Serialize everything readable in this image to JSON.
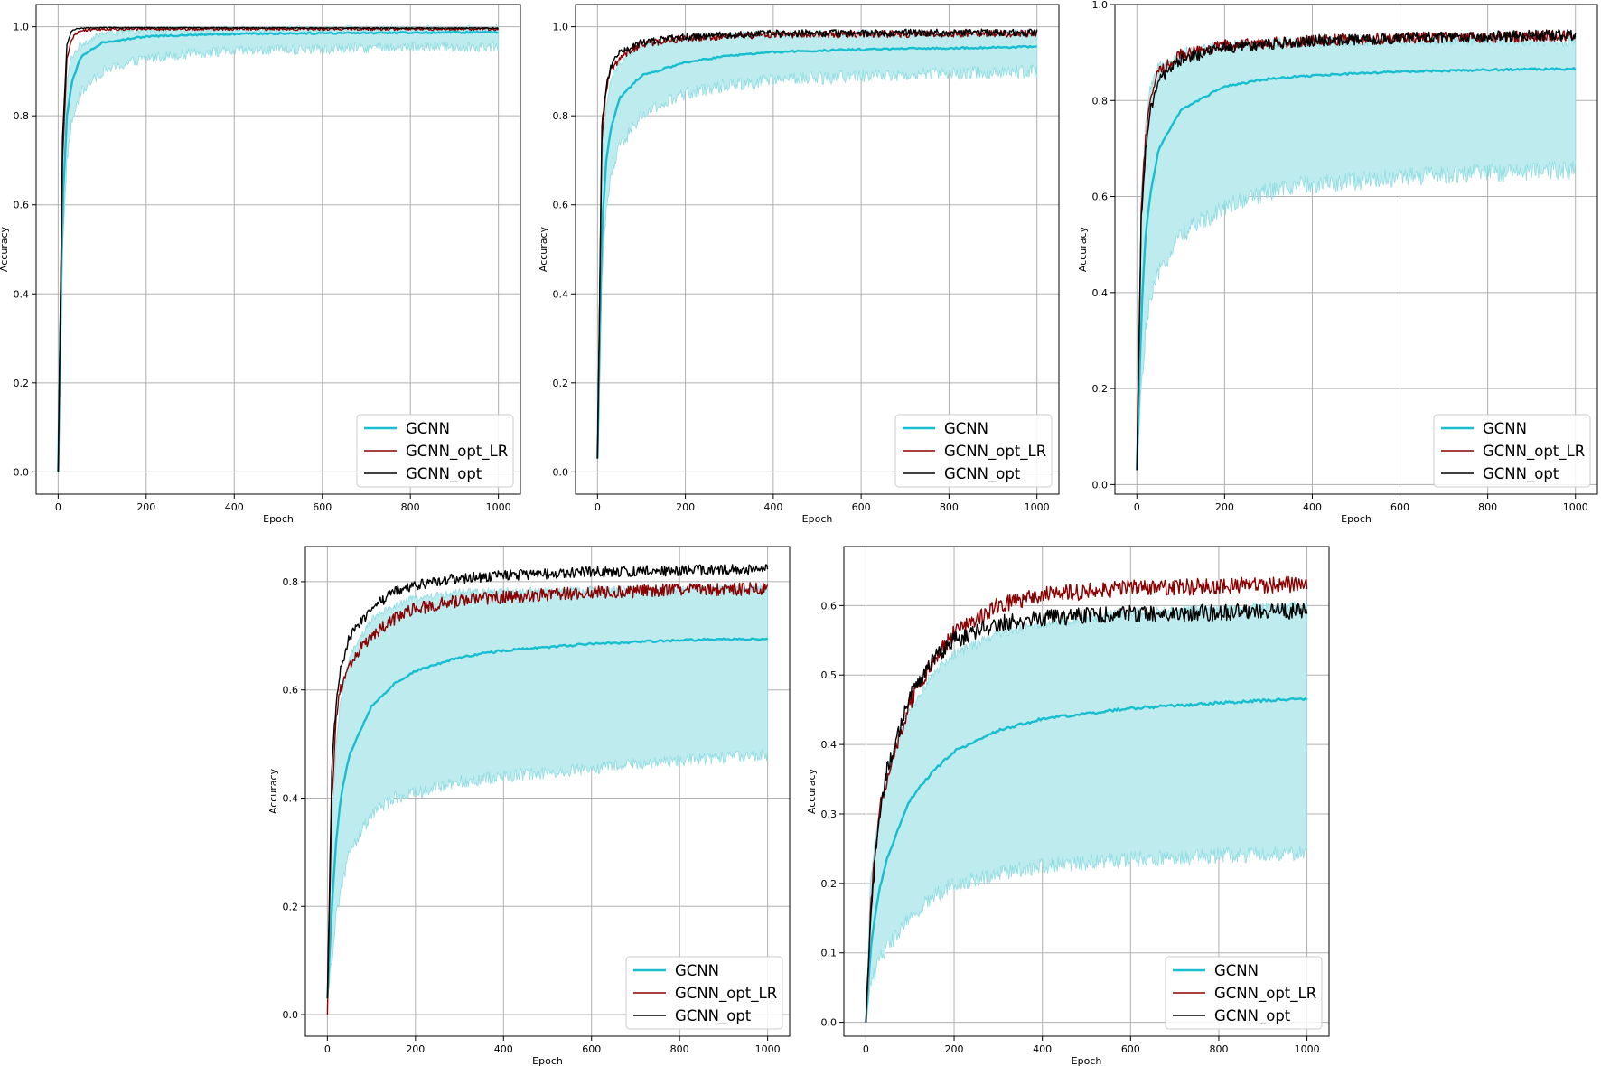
{
  "colors": {
    "gcnn": "#17becf",
    "gcnn_band": "#bdebee",
    "gcnn_band_edge": "#8fdde3",
    "gcnn_opt_lr": "#8b0000",
    "gcnn_opt": "#000000",
    "grid": "#b0b0b0"
  },
  "chart_data": [
    {
      "type": "line",
      "xlabel": "Epoch",
      "ylabel": "Accuracy",
      "xlim": [
        -50,
        1050
      ],
      "ylim": [
        -0.05,
        1.05
      ],
      "xticks": [
        0,
        200,
        400,
        600,
        800,
        1000
      ],
      "yticks": [
        0.0,
        0.2,
        0.4,
        0.6,
        0.8,
        1.0
      ],
      "xtick_labels": [
        "0",
        "200",
        "400",
        "600",
        "800",
        "1000"
      ],
      "ytick_labels": [
        "0.0",
        "0.2",
        "0.4",
        "0.6",
        "0.8",
        "1.0"
      ],
      "grid": true,
      "legend_position": "lower-right",
      "series": [
        {
          "name": "GCNN",
          "style": "mean-with-band",
          "x": [
            0,
            10,
            20,
            30,
            50,
            100,
            200,
            300,
            400,
            600,
            800,
            1000
          ],
          "values": [
            0.0,
            0.6,
            0.8,
            0.87,
            0.93,
            0.965,
            0.978,
            0.982,
            0.984,
            0.986,
            0.987,
            0.988
          ],
          "band_lower": [
            0.0,
            0.5,
            0.7,
            0.78,
            0.85,
            0.9,
            0.93,
            0.94,
            0.945,
            0.95,
            0.955,
            0.955
          ],
          "band_upper": [
            0.0,
            0.7,
            0.88,
            0.93,
            0.96,
            0.985,
            0.993,
            0.995,
            0.995,
            0.996,
            0.996,
            0.996
          ],
          "noise": 0.002,
          "band_noise": 0.012
        },
        {
          "name": "GCNN_opt_LR",
          "x": [
            0,
            10,
            20,
            30,
            40,
            60,
            100,
            1000
          ],
          "values": [
            0.0,
            0.7,
            0.93,
            0.97,
            0.985,
            0.993,
            0.995,
            0.995
          ],
          "noise": 0.003
        },
        {
          "name": "GCNN_opt",
          "x": [
            0,
            10,
            20,
            30,
            40,
            60,
            100,
            1000
          ],
          "values": [
            0.0,
            0.75,
            0.96,
            0.99,
            0.995,
            0.997,
            0.998,
            0.997
          ],
          "noise": 0.001
        }
      ]
    },
    {
      "type": "line",
      "xlabel": "Epoch",
      "ylabel": "Accuracy",
      "xlim": [
        -50,
        1050
      ],
      "ylim": [
        -0.05,
        1.05
      ],
      "xticks": [
        0,
        200,
        400,
        600,
        800,
        1000
      ],
      "yticks": [
        0.0,
        0.2,
        0.4,
        0.6,
        0.8,
        1.0
      ],
      "xtick_labels": [
        "0",
        "200",
        "400",
        "600",
        "800",
        "1000"
      ],
      "ytick_labels": [
        "0.0",
        "0.2",
        "0.4",
        "0.6",
        "0.8",
        "1.0"
      ],
      "grid": true,
      "legend_position": "lower-right",
      "series": [
        {
          "name": "GCNN",
          "style": "mean-with-band",
          "x": [
            0,
            10,
            20,
            30,
            50,
            100,
            200,
            300,
            400,
            600,
            800,
            1000
          ],
          "values": [
            0.03,
            0.55,
            0.7,
            0.77,
            0.84,
            0.89,
            0.92,
            0.935,
            0.943,
            0.949,
            0.952,
            0.955
          ],
          "band_lower": [
            0.03,
            0.45,
            0.58,
            0.66,
            0.73,
            0.8,
            0.85,
            0.87,
            0.88,
            0.89,
            0.895,
            0.9
          ],
          "band_upper": [
            0.03,
            0.7,
            0.82,
            0.88,
            0.92,
            0.96,
            0.975,
            0.98,
            0.983,
            0.985,
            0.985,
            0.985
          ],
          "noise": 0.002,
          "band_noise": 0.015
        },
        {
          "name": "GCNN_opt_LR",
          "x": [
            0,
            10,
            20,
            30,
            50,
            100,
            200,
            400,
            1000
          ],
          "values": [
            0.03,
            0.75,
            0.86,
            0.9,
            0.93,
            0.96,
            0.975,
            0.983,
            0.985
          ],
          "noise": 0.008
        },
        {
          "name": "GCNN_opt",
          "x": [
            0,
            10,
            20,
            30,
            50,
            100,
            200,
            400,
            1000
          ],
          "values": [
            0.03,
            0.78,
            0.87,
            0.91,
            0.94,
            0.965,
            0.978,
            0.985,
            0.988
          ],
          "noise": 0.008
        }
      ]
    },
    {
      "type": "line",
      "xlabel": "Epoch",
      "ylabel": "Accuracy",
      "xlim": [
        -50,
        1050
      ],
      "ylim": [
        -0.02,
        1.0
      ],
      "xticks": [
        0,
        200,
        400,
        600,
        800,
        1000
      ],
      "yticks": [
        0.0,
        0.2,
        0.4,
        0.6,
        0.8,
        1.0
      ],
      "xtick_labels": [
        "0",
        "200",
        "400",
        "600",
        "800",
        "1000"
      ],
      "ytick_labels": [
        "0.0",
        "0.2",
        "0.4",
        "0.6",
        "0.8",
        "1.0"
      ],
      "grid": true,
      "legend_position": "lower-right",
      "series": [
        {
          "name": "GCNN",
          "style": "mean-with-band",
          "x": [
            0,
            10,
            20,
            30,
            50,
            100,
            200,
            300,
            400,
            600,
            800,
            1000
          ],
          "values": [
            0.03,
            0.35,
            0.52,
            0.6,
            0.7,
            0.78,
            0.83,
            0.845,
            0.852,
            0.86,
            0.864,
            0.866
          ],
          "band_lower": [
            0.03,
            0.2,
            0.32,
            0.38,
            0.44,
            0.52,
            0.58,
            0.61,
            0.625,
            0.64,
            0.65,
            0.655
          ],
          "band_upper": [
            0.03,
            0.6,
            0.75,
            0.82,
            0.87,
            0.9,
            0.915,
            0.92,
            0.922,
            0.925,
            0.925,
            0.925
          ],
          "noise": 0.002,
          "band_noise": 0.02
        },
        {
          "name": "GCNN_opt_LR",
          "x": [
            0,
            10,
            20,
            30,
            50,
            100,
            200,
            400,
            600,
            1000
          ],
          "values": [
            0.03,
            0.58,
            0.72,
            0.8,
            0.86,
            0.895,
            0.915,
            0.925,
            0.93,
            0.935
          ],
          "noise": 0.012
        },
        {
          "name": "GCNN_opt",
          "x": [
            0,
            10,
            20,
            30,
            50,
            100,
            200,
            400,
            600,
            1000
          ],
          "values": [
            0.03,
            0.55,
            0.7,
            0.78,
            0.84,
            0.885,
            0.91,
            0.925,
            0.93,
            0.937
          ],
          "noise": 0.012
        }
      ]
    },
    {
      "type": "line",
      "xlabel": "Epoch",
      "ylabel": "Accuracy",
      "xlim": [
        -50,
        1050
      ],
      "ylim": [
        -0.04,
        0.865
      ],
      "xticks": [
        0,
        200,
        400,
        600,
        800,
        1000
      ],
      "yticks": [
        0.0,
        0.2,
        0.4,
        0.6,
        0.8
      ],
      "xtick_labels": [
        "0",
        "200",
        "400",
        "600",
        "800",
        "1000"
      ],
      "ytick_labels": [
        "0.0",
        "0.2",
        "0.4",
        "0.6",
        "0.8"
      ],
      "grid": true,
      "legend_position": "lower-right",
      "series": [
        {
          "name": "GCNN",
          "style": "mean-with-band",
          "x": [
            0,
            10,
            20,
            30,
            50,
            100,
            150,
            200,
            300,
            400,
            600,
            800,
            1000
          ],
          "values": [
            0.03,
            0.2,
            0.32,
            0.4,
            0.48,
            0.57,
            0.61,
            0.635,
            0.66,
            0.673,
            0.685,
            0.692,
            0.695
          ],
          "band_lower": [
            0.03,
            0.1,
            0.18,
            0.23,
            0.3,
            0.37,
            0.4,
            0.41,
            0.43,
            0.44,
            0.455,
            0.47,
            0.48
          ],
          "band_upper": [
            0.03,
            0.35,
            0.5,
            0.58,
            0.66,
            0.73,
            0.755,
            0.77,
            0.78,
            0.782,
            0.785,
            0.787,
            0.787
          ],
          "noise": 0.002,
          "band_noise": 0.012
        },
        {
          "name": "GCNN_opt_LR",
          "x": [
            0,
            10,
            20,
            30,
            50,
            100,
            150,
            200,
            300,
            400,
            600,
            800,
            1000
          ],
          "values": [
            0.0,
            0.4,
            0.55,
            0.6,
            0.65,
            0.7,
            0.73,
            0.75,
            0.765,
            0.772,
            0.78,
            0.785,
            0.787
          ],
          "noise": 0.012
        },
        {
          "name": "GCNN_opt",
          "x": [
            0,
            10,
            20,
            30,
            50,
            100,
            150,
            200,
            300,
            400,
            600,
            800,
            1000
          ],
          "values": [
            0.03,
            0.45,
            0.58,
            0.64,
            0.7,
            0.75,
            0.78,
            0.795,
            0.806,
            0.812,
            0.818,
            0.821,
            0.823
          ],
          "noise": 0.01
        }
      ]
    },
    {
      "type": "line",
      "xlabel": "Epoch",
      "ylabel": "Accuracy",
      "xlim": [
        -50,
        1050
      ],
      "ylim": [
        -0.02,
        0.685
      ],
      "xticks": [
        0,
        200,
        400,
        600,
        800,
        1000
      ],
      "yticks": [
        0.0,
        0.1,
        0.2,
        0.3,
        0.4,
        0.5,
        0.6
      ],
      "xtick_labels": [
        "0",
        "200",
        "400",
        "600",
        "800",
        "1000"
      ],
      "ytick_labels": [
        "0.0",
        "0.1",
        "0.2",
        "0.3",
        "0.4",
        "0.5",
        "0.6"
      ],
      "grid": true,
      "legend_position": "lower-right",
      "series": [
        {
          "name": "GCNN",
          "style": "mean-with-band",
          "x": [
            0,
            10,
            20,
            30,
            50,
            100,
            150,
            200,
            300,
            400,
            600,
            800,
            1000
          ],
          "values": [
            0.0,
            0.1,
            0.15,
            0.19,
            0.24,
            0.32,
            0.36,
            0.39,
            0.42,
            0.437,
            0.452,
            0.46,
            0.466
          ],
          "band_lower": [
            0.0,
            0.05,
            0.07,
            0.09,
            0.11,
            0.15,
            0.18,
            0.2,
            0.215,
            0.225,
            0.235,
            0.24,
            0.245
          ],
          "band_upper": [
            0.0,
            0.2,
            0.26,
            0.3,
            0.36,
            0.45,
            0.5,
            0.53,
            0.56,
            0.575,
            0.59,
            0.595,
            0.6
          ],
          "noise": 0.002,
          "band_noise": 0.012
        },
        {
          "name": "GCNN_opt_LR",
          "x": [
            0,
            10,
            20,
            30,
            50,
            100,
            150,
            200,
            300,
            400,
            600,
            800,
            1000
          ],
          "values": [
            0.0,
            0.15,
            0.24,
            0.3,
            0.36,
            0.46,
            0.52,
            0.56,
            0.6,
            0.615,
            0.625,
            0.628,
            0.63
          ],
          "noise": 0.012
        },
        {
          "name": "GCNN_opt",
          "x": [
            0,
            10,
            20,
            30,
            50,
            100,
            150,
            200,
            300,
            400,
            600,
            800,
            1000
          ],
          "values": [
            0.0,
            0.15,
            0.23,
            0.3,
            0.37,
            0.47,
            0.52,
            0.55,
            0.575,
            0.582,
            0.588,
            0.59,
            0.592
          ],
          "noise": 0.012
        }
      ]
    }
  ]
}
